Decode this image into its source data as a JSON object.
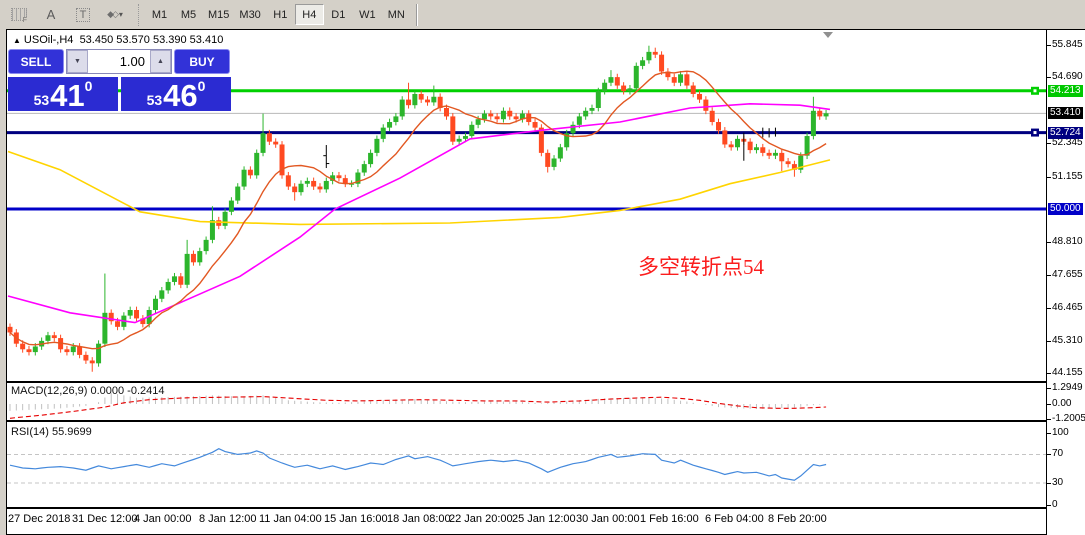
{
  "toolbar": {
    "icons": [
      {
        "name": "fibo-grid-icon",
        "glyph": "F"
      },
      {
        "name": "text-label-icon",
        "glyph": "A"
      },
      {
        "name": "text-box-icon",
        "glyph": "T"
      },
      {
        "name": "shapes-icon",
        "glyph": "◆◇"
      },
      {
        "name": "dropdown-caret-icon",
        "glyph": "▾"
      }
    ],
    "timeframes": [
      "M1",
      "M5",
      "M15",
      "M30",
      "H1",
      "H4",
      "D1",
      "W1",
      "MN"
    ],
    "active_timeframe": "H4"
  },
  "header": {
    "symbol": "USOil-,H4",
    "ohlc": "53.450 53.570 53.390 53.410"
  },
  "trade_panel": {
    "sell_label": "SELL",
    "buy_label": "BUY",
    "volume": "1.00",
    "sell_price": {
      "small": "53",
      "big": "41",
      "sup": "0"
    },
    "buy_price": {
      "small": "53",
      "big": "46",
      "sup": "0"
    },
    "accent_blue": "#2b2bd2"
  },
  "annotation": {
    "text": "多空转折点54",
    "color": "#fb1d1d"
  },
  "colors": {
    "candle_up": "#2cb52c",
    "candle_down": "#ff4a21",
    "ma_fast": "#e25822",
    "ma_mid": "#ff00ff",
    "ma_slow": "#ffd400",
    "macd_hist": "#c0c0c0",
    "macd_signal": "#e60000",
    "rsi_line": "#4489dc"
  },
  "chart_data": [
    {
      "type": "candlestick",
      "title": "USOil H4",
      "x_labels": [
        "27 Dec 2018",
        "31 Dec 12:00",
        "4 Jan 00:00",
        "8 Jan 12:00",
        "11 Jan 04:00",
        "15 Jan 16:00",
        "18 Jan 08:00",
        "22 Jan 20:00",
        "25 Jan 12:00",
        "30 Jan 00:00",
        "1 Feb 16:00",
        "6 Feb 04:00",
        "8 Feb 20:00"
      ],
      "ylim": [
        43.9,
        56.4
      ],
      "price_ticks": [
        55.845,
        54.69,
        52.345,
        51.155,
        48.81,
        47.655,
        46.465,
        45.31,
        44.155
      ],
      "price_badges": [
        {
          "value": "54.213",
          "price": 54.213,
          "bg": "#00c800"
        },
        {
          "value": "53.410",
          "price": 53.41,
          "bg": "#000000"
        },
        {
          "value": "52.724",
          "price": 52.724,
          "bg": "#000080"
        },
        {
          "value": "50.000",
          "price": 50.0,
          "bg": "#0000c8"
        }
      ],
      "hlines": [
        {
          "price": 54.213,
          "color": "#00d000",
          "width": 3,
          "marker": true
        },
        {
          "price": 53.41,
          "color": "#b8b8b8",
          "width": 1,
          "marker": false
        },
        {
          "price": 52.724,
          "color": "#000080",
          "width": 3,
          "marker": true
        },
        {
          "price": 50.0,
          "color": "#0000c8",
          "width": 3,
          "marker": false
        }
      ],
      "first_open": 45.8,
      "closes": [
        45.6,
        45.2,
        45.0,
        44.9,
        45.1,
        45.3,
        45.5,
        45.4,
        45.0,
        44.9,
        45.1,
        44.8,
        44.6,
        44.5,
        45.2,
        46.3,
        46.0,
        45.8,
        46.2,
        46.4,
        46.1,
        45.9,
        46.4,
        46.8,
        47.1,
        47.4,
        47.6,
        47.3,
        48.4,
        48.1,
        48.5,
        48.9,
        49.6,
        49.4,
        49.9,
        50.3,
        50.8,
        51.4,
        51.2,
        52.0,
        52.7,
        52.4,
        52.3,
        51.2,
        50.8,
        50.6,
        50.9,
        51.0,
        50.8,
        50.7,
        51.0,
        51.2,
        51.1,
        50.9,
        50.9,
        51.3,
        51.6,
        52.0,
        52.5,
        52.9,
        53.1,
        53.3,
        53.9,
        53.7,
        54.1,
        53.9,
        53.8,
        54.0,
        53.6,
        53.3,
        52.4,
        52.5,
        52.6,
        53.0,
        53.2,
        53.4,
        53.3,
        53.2,
        53.5,
        53.3,
        53.2,
        53.4,
        53.1,
        52.9,
        52.0,
        51.5,
        51.8,
        52.2,
        52.7,
        53.0,
        53.3,
        53.5,
        53.6,
        54.2,
        54.5,
        54.7,
        54.4,
        54.2,
        54.3,
        55.1,
        55.3,
        55.6,
        55.5,
        54.9,
        54.7,
        54.5,
        54.8,
        54.4,
        54.1,
        53.9,
        53.5,
        53.1,
        52.8,
        52.3,
        52.2,
        52.5,
        52.4,
        52.1,
        52.2,
        52.0,
        51.9,
        52.0,
        51.7,
        51.6,
        51.4,
        51.9,
        52.6,
        53.5,
        53.3,
        53.41
      ],
      "wick_overrides": {
        "13": [
          44.2,
          null
        ],
        "15": [
          null,
          47.7
        ],
        "28": [
          null,
          48.9
        ],
        "32": [
          null,
          50.1
        ],
        "40": [
          null,
          53.4
        ],
        "45": [
          50.3,
          null
        ],
        "63": [
          null,
          54.5
        ],
        "67": [
          null,
          54.4
        ],
        "85": [
          51.3,
          null
        ],
        "95": [
          null,
          54.95
        ],
        "101": [
          null,
          55.82
        ],
        "102": [
          null,
          55.75
        ],
        "122": [
          51.35,
          null
        ],
        "124": [
          51.15,
          null
        ],
        "127": [
          null,
          54.0
        ]
      },
      "ma_fast_period": 10,
      "ma_mid_points": [
        [
          8,
          46.9
        ],
        [
          70,
          46.3
        ],
        [
          135,
          45.95
        ],
        [
          240,
          47.6
        ],
        [
          300,
          49.0
        ],
        [
          335,
          50.0
        ],
        [
          400,
          51.1
        ],
        [
          470,
          52.5
        ],
        [
          540,
          52.8
        ],
        [
          620,
          53.1
        ],
        [
          690,
          53.6
        ],
        [
          750,
          53.75
        ],
        [
          800,
          53.7
        ],
        [
          830,
          53.55
        ]
      ],
      "ma_slow_points": [
        [
          8,
          52.05
        ],
        [
          60,
          51.4
        ],
        [
          140,
          49.9
        ],
        [
          200,
          49.55
        ],
        [
          300,
          49.45
        ],
        [
          450,
          49.5
        ],
        [
          560,
          49.7
        ],
        [
          620,
          49.95
        ],
        [
          680,
          50.35
        ],
        [
          730,
          50.9
        ],
        [
          780,
          51.3
        ],
        [
          830,
          51.75
        ]
      ],
      "black_marks": {
        "bar_range_line": {
          "bar": 116,
          "from": 52.72,
          "to": 51.72
        },
        "cross_bar": {
          "bar": 50,
          "from": 52.28,
          "to": 51.46,
          "tick1": 51.9,
          "tick2": 51.62
        },
        "tick_strokes": [
          {
            "bar": 119,
            "from": 52.9,
            "to": 52.55
          },
          {
            "bar": 120,
            "from": 52.88,
            "to": 52.55
          },
          {
            "bar": 121,
            "from": 52.9,
            "to": 52.58
          }
        ]
      }
    },
    {
      "type": "macd",
      "label": "MACD(12,26,9)",
      "values": "0.0000 -0.2414",
      "ticks": [
        "1.2949",
        "0.00",
        "-1.2005"
      ],
      "tick_values": [
        1.2949,
        0.0,
        -1.2005
      ],
      "histogram_keypoints": [
        [
          0,
          -0.55
        ],
        [
          4,
          -0.45
        ],
        [
          8,
          -0.35
        ],
        [
          12,
          -0.15
        ],
        [
          14,
          0.15
        ],
        [
          16,
          0.9
        ],
        [
          18,
          0.7
        ],
        [
          20,
          0.5
        ],
        [
          24,
          0.55
        ],
        [
          28,
          0.6
        ],
        [
          32,
          0.7
        ],
        [
          36,
          0.6
        ],
        [
          40,
          0.7
        ],
        [
          44,
          0.3
        ],
        [
          48,
          0.15
        ],
        [
          52,
          0.1
        ],
        [
          56,
          0.2
        ],
        [
          60,
          0.35
        ],
        [
          64,
          0.4
        ],
        [
          68,
          0.25
        ],
        [
          72,
          0.15
        ],
        [
          76,
          0.2
        ],
        [
          80,
          0.2
        ],
        [
          84,
          0.05
        ],
        [
          86,
          0.1
        ],
        [
          90,
          0.3
        ],
        [
          94,
          0.45
        ],
        [
          98,
          0.5
        ],
        [
          101,
          0.55
        ],
        [
          104,
          0.4
        ],
        [
          107,
          0.2
        ],
        [
          109,
          0.0
        ],
        [
          112,
          -0.25
        ],
        [
          115,
          -0.35
        ],
        [
          118,
          -0.4
        ],
        [
          121,
          -0.35
        ],
        [
          124,
          -0.3
        ],
        [
          126,
          -0.15
        ],
        [
          128,
          -0.05
        ],
        [
          129,
          0.0
        ]
      ],
      "signal_keypoints": [
        [
          0,
          -1.15
        ],
        [
          5,
          -0.9
        ],
        [
          10,
          -0.6
        ],
        [
          15,
          -0.25
        ],
        [
          18,
          0.1
        ],
        [
          22,
          0.35
        ],
        [
          28,
          0.5
        ],
        [
          34,
          0.55
        ],
        [
          40,
          0.6
        ],
        [
          45,
          0.45
        ],
        [
          50,
          0.3
        ],
        [
          55,
          0.25
        ],
        [
          60,
          0.3
        ],
        [
          65,
          0.35
        ],
        [
          70,
          0.3
        ],
        [
          75,
          0.25
        ],
        [
          80,
          0.25
        ],
        [
          85,
          0.15
        ],
        [
          90,
          0.25
        ],
        [
          95,
          0.4
        ],
        [
          100,
          0.5
        ],
        [
          103,
          0.55
        ],
        [
          106,
          0.45
        ],
        [
          109,
          0.3
        ],
        [
          112,
          0.05
        ],
        [
          115,
          -0.15
        ],
        [
          118,
          -0.3
        ],
        [
          121,
          -0.35
        ],
        [
          124,
          -0.35
        ],
        [
          127,
          -0.3
        ],
        [
          129,
          -0.24
        ]
      ]
    },
    {
      "type": "line",
      "label": "RSI(14)",
      "values": "55.9699",
      "ticks": [
        "100",
        "70",
        "30",
        "0"
      ],
      "tick_values": [
        100,
        70,
        30,
        0
      ],
      "levels": [
        70,
        30
      ],
      "keypoints": [
        [
          0,
          55
        ],
        [
          2,
          51
        ],
        [
          4,
          50
        ],
        [
          6,
          52
        ],
        [
          8,
          53
        ],
        [
          10,
          51
        ],
        [
          12,
          48
        ],
        [
          14,
          54
        ],
        [
          16,
          50
        ],
        [
          18,
          53
        ],
        [
          20,
          56
        ],
        [
          22,
          52
        ],
        [
          24,
          57
        ],
        [
          26,
          54
        ],
        [
          28,
          60
        ],
        [
          30,
          66
        ],
        [
          32,
          73
        ],
        [
          33,
          78
        ],
        [
          34,
          74
        ],
        [
          36,
          70
        ],
        [
          38,
          72
        ],
        [
          39,
          75
        ],
        [
          40,
          72
        ],
        [
          41,
          65
        ],
        [
          43,
          58
        ],
        [
          45,
          52
        ],
        [
          47,
          55
        ],
        [
          49,
          50
        ],
        [
          51,
          54
        ],
        [
          53,
          49
        ],
        [
          55,
          53
        ],
        [
          57,
          58
        ],
        [
          59,
          56
        ],
        [
          61,
          63
        ],
        [
          63,
          68
        ],
        [
          64,
          64
        ],
        [
          66,
          67
        ],
        [
          68,
          62
        ],
        [
          70,
          54
        ],
        [
          72,
          57
        ],
        [
          74,
          60
        ],
        [
          76,
          62
        ],
        [
          78,
          60
        ],
        [
          80,
          62
        ],
        [
          82,
          58
        ],
        [
          84,
          50
        ],
        [
          85,
          45
        ],
        [
          87,
          52
        ],
        [
          89,
          57
        ],
        [
          91,
          60
        ],
        [
          93,
          66
        ],
        [
          95,
          70
        ],
        [
          96,
          66
        ],
        [
          98,
          68
        ],
        [
          100,
          71
        ],
        [
          102,
          70
        ],
        [
          103,
          62
        ],
        [
          105,
          58
        ],
        [
          106,
          62
        ],
        [
          108,
          55
        ],
        [
          110,
          50
        ],
        [
          112,
          45
        ],
        [
          113,
          42
        ],
        [
          115,
          46
        ],
        [
          116,
          44
        ],
        [
          118,
          45
        ],
        [
          120,
          40
        ],
        [
          121,
          42
        ],
        [
          122,
          37
        ],
        [
          124,
          34
        ],
        [
          125,
          40
        ],
        [
          126,
          48
        ],
        [
          127,
          56
        ],
        [
          128,
          54
        ],
        [
          129,
          56
        ]
      ]
    }
  ]
}
